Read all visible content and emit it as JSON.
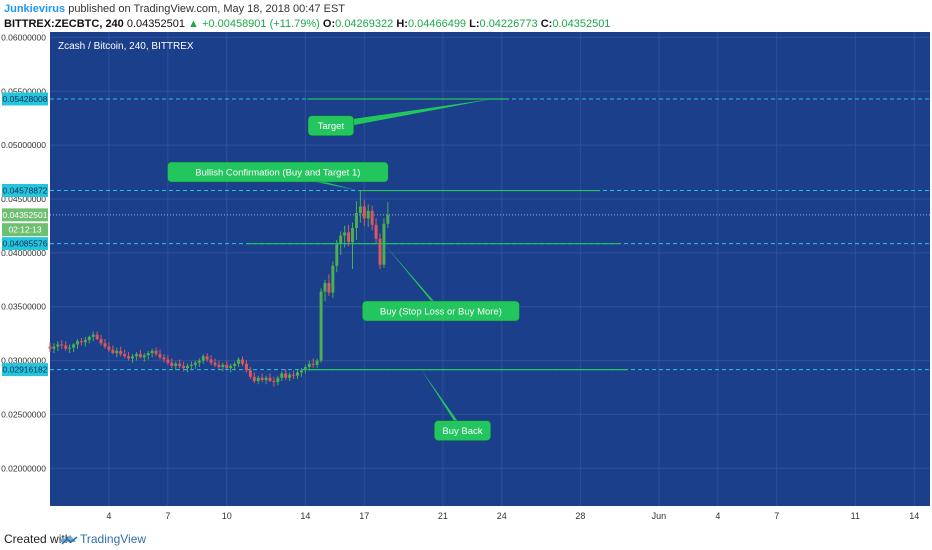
{
  "header": {
    "author": "Junkievirus",
    "published": " published on TradingView.com, May 18, 2018 00:47 EST",
    "symbol": "BITTREX:ZECBTC, 240",
    "last": "0.04352501",
    "change_arrow": "▲",
    "change": "+0.00458901 (+11.79%)",
    "o_label": "O:",
    "o_value": "0.04269322",
    "h_label": "H:",
    "h_value": "0.04466499",
    "l_label": "L:",
    "l_value": "0.04226773",
    "c_label": "C:",
    "c_value": "0.04352501"
  },
  "footer": {
    "created_with": "Created with",
    "brand": "TradingView"
  },
  "colors": {
    "background": "#1b3f8b",
    "bull": "#4caf50",
    "bear": "#e0575b",
    "level_line": "#26c6da",
    "annotation": "#22c55e",
    "axis_badge": "#26c6da",
    "price_badge": "#6fbf73"
  },
  "chart_data": {
    "type": "candlestick",
    "title": "Zcash / Bitcoin, 240, BITTREX",
    "ylim": [
      0.0165,
      0.0605
    ],
    "y_ticks": [
      "0.06000000",
      "0.05500000",
      "0.05000000",
      "0.04500000",
      "0.04000000",
      "0.03500000",
      "0.03000000",
      "0.02500000",
      "0.02000000"
    ],
    "y_tick_values": [
      0.06,
      0.055,
      0.05,
      0.045,
      0.04,
      0.035,
      0.03,
      0.025,
      0.02
    ],
    "x_ticks": [
      "4",
      "7",
      "10",
      "14",
      "17",
      "21",
      "24",
      "28",
      "Jun",
      "4",
      "7",
      "11",
      "14"
    ],
    "x_tick_days": [
      4,
      7,
      10,
      14,
      17,
      21,
      24,
      28,
      32,
      35,
      38,
      42,
      45
    ],
    "x_start_day": 1.0,
    "x_end_day": 45.8,
    "grid": true,
    "price_badges": [
      {
        "label": "0.05428008",
        "value": 0.05428008
      },
      {
        "label": "0.04578872",
        "value": 0.04578872
      },
      {
        "label": "0.04352501",
        "value": 0.04352501
      },
      {
        "label": "02:12:13",
        "value": 0.04215
      },
      {
        "label": "0.04085576",
        "value": 0.04085576
      },
      {
        "label": "0.02916182",
        "value": 0.02916182
      }
    ],
    "levels": [
      {
        "value": 0.05428008,
        "style": "dashed"
      },
      {
        "value": 0.04578872,
        "style": "dashed"
      },
      {
        "value": 0.04085576,
        "style": "dashed"
      },
      {
        "value": 0.02916182,
        "style": "dashed"
      },
      {
        "value": 0.04352501,
        "style": "dotted"
      }
    ],
    "annotations": [
      {
        "text": "Target",
        "anchor_day": 23.5,
        "anchor_price": 0.05428,
        "box_day": 15.3,
        "box_price": 0.0518
      },
      {
        "text": "Bullish Confirmation (Buy and Target 1)",
        "anchor_day": 16.7,
        "anchor_price": 0.04578,
        "box_day": 12.6,
        "box_price": 0.0475
      },
      {
        "text": "Buy (Stop Loss or Buy More)",
        "anchor_day": 18.0,
        "anchor_price": 0.04085,
        "box_day": 20.9,
        "box_price": 0.0346
      },
      {
        "text": "Buy Back",
        "anchor_day": 19.9,
        "anchor_price": 0.02916,
        "box_day": 22.0,
        "box_price": 0.0235
      }
    ],
    "annotation_lines": [
      {
        "start_day": 14.1,
        "end_day": 24.3,
        "price": 0.05428
      },
      {
        "start_day": 16.7,
        "end_day": 29.0,
        "price": 0.04578
      },
      {
        "start_day": 11.0,
        "end_day": 30.0,
        "price": 0.04085
      },
      {
        "start_day": 14.1,
        "end_day": 30.4,
        "price": 0.02916
      }
    ],
    "candles": [
      [
        1.0,
        0.0313,
        0.0317,
        0.0308,
        0.0311
      ],
      [
        1.2,
        0.0311,
        0.0316,
        0.0307,
        0.0313
      ],
      [
        1.4,
        0.0313,
        0.0318,
        0.0309,
        0.0315
      ],
      [
        1.6,
        0.0315,
        0.0319,
        0.0311,
        0.0314
      ],
      [
        1.8,
        0.0314,
        0.0318,
        0.0309,
        0.0311
      ],
      [
        2.0,
        0.0311,
        0.0315,
        0.0307,
        0.0312
      ],
      [
        2.2,
        0.0312,
        0.0316,
        0.0308,
        0.0315
      ],
      [
        2.4,
        0.0315,
        0.032,
        0.0311,
        0.0318
      ],
      [
        2.6,
        0.0318,
        0.0321,
        0.0314,
        0.0317
      ],
      [
        2.8,
        0.0317,
        0.0322,
        0.0313,
        0.0319
      ],
      [
        3.0,
        0.0319,
        0.0323,
        0.0316,
        0.0322
      ],
      [
        3.2,
        0.0322,
        0.0327,
        0.0318,
        0.0324
      ],
      [
        3.4,
        0.0324,
        0.0327,
        0.0319,
        0.032
      ],
      [
        3.6,
        0.032,
        0.0324,
        0.0314,
        0.0316
      ],
      [
        3.8,
        0.0316,
        0.032,
        0.0311,
        0.0313
      ],
      [
        4.0,
        0.0313,
        0.0317,
        0.0308,
        0.031
      ],
      [
        4.2,
        0.031,
        0.0314,
        0.0306,
        0.0307
      ],
      [
        4.4,
        0.0307,
        0.0312,
        0.0303,
        0.0309
      ],
      [
        4.6,
        0.0309,
        0.0313,
        0.0304,
        0.0306
      ],
      [
        4.8,
        0.0306,
        0.031,
        0.0302,
        0.0304
      ],
      [
        5.0,
        0.0304,
        0.0308,
        0.03,
        0.0302
      ],
      [
        5.2,
        0.0302,
        0.0306,
        0.0298,
        0.0304
      ],
      [
        5.4,
        0.0304,
        0.0308,
        0.03,
        0.0306
      ],
      [
        5.6,
        0.0306,
        0.031,
        0.0302,
        0.0303
      ],
      [
        5.8,
        0.0303,
        0.0307,
        0.0299,
        0.0305
      ],
      [
        6.0,
        0.0305,
        0.0309,
        0.0301,
        0.0307
      ],
      [
        6.2,
        0.0307,
        0.0311,
        0.0303,
        0.0309
      ],
      [
        6.4,
        0.0309,
        0.0312,
        0.0304,
        0.0306
      ],
      [
        6.6,
        0.0306,
        0.031,
        0.0301,
        0.0303
      ],
      [
        6.8,
        0.0303,
        0.0306,
        0.0298,
        0.0301
      ],
      [
        7.0,
        0.0301,
        0.0305,
        0.0296,
        0.0298
      ],
      [
        7.2,
        0.0298,
        0.0302,
        0.0293,
        0.0295
      ],
      [
        7.4,
        0.0295,
        0.0299,
        0.0291,
        0.0297
      ],
      [
        7.6,
        0.0297,
        0.0301,
        0.0293,
        0.0295
      ],
      [
        7.8,
        0.0295,
        0.0299,
        0.029,
        0.0293
      ],
      [
        8.0,
        0.0293,
        0.0297,
        0.0289,
        0.0295
      ],
      [
        8.2,
        0.0295,
        0.0299,
        0.0291,
        0.0296
      ],
      [
        8.4,
        0.0296,
        0.03,
        0.0292,
        0.0298
      ],
      [
        8.6,
        0.0298,
        0.0302,
        0.0294,
        0.03
      ],
      [
        8.8,
        0.03,
        0.0306,
        0.0297,
        0.0304
      ],
      [
        9.0,
        0.0304,
        0.0307,
        0.0299,
        0.0301
      ],
      [
        9.2,
        0.0301,
        0.0305,
        0.0296,
        0.0298
      ],
      [
        9.4,
        0.0298,
        0.0302,
        0.0294,
        0.0296
      ],
      [
        9.6,
        0.0296,
        0.03,
        0.0292,
        0.0294
      ],
      [
        9.8,
        0.0294,
        0.0298,
        0.029,
        0.0296
      ],
      [
        10.0,
        0.0296,
        0.03,
        0.0292,
        0.0293
      ],
      [
        10.2,
        0.0293,
        0.0297,
        0.0289,
        0.0295
      ],
      [
        10.4,
        0.0295,
        0.0299,
        0.0291,
        0.0297
      ],
      [
        10.6,
        0.0297,
        0.0303,
        0.0294,
        0.0301
      ],
      [
        10.8,
        0.0301,
        0.0304,
        0.0295,
        0.0297
      ],
      [
        11.0,
        0.0297,
        0.03,
        0.0289,
        0.0291
      ],
      [
        11.2,
        0.0291,
        0.0294,
        0.0283,
        0.0285
      ],
      [
        11.4,
        0.0285,
        0.0289,
        0.0279,
        0.0281
      ],
      [
        11.6,
        0.0281,
        0.0286,
        0.0278,
        0.0284
      ],
      [
        11.8,
        0.0284,
        0.0288,
        0.028,
        0.0282
      ],
      [
        12.0,
        0.0282,
        0.0286,
        0.0278,
        0.0284
      ],
      [
        12.2,
        0.0284,
        0.0288,
        0.028,
        0.0281
      ],
      [
        12.4,
        0.0281,
        0.0285,
        0.0276,
        0.028
      ],
      [
        12.6,
        0.028,
        0.0286,
        0.0277,
        0.0284
      ],
      [
        12.8,
        0.0284,
        0.029,
        0.0281,
        0.0288
      ],
      [
        13.0,
        0.0288,
        0.0292,
        0.0282,
        0.0284
      ],
      [
        13.2,
        0.0284,
        0.0289,
        0.0281,
        0.0287
      ],
      [
        13.4,
        0.0287,
        0.0291,
        0.0283,
        0.0286
      ],
      [
        13.6,
        0.0286,
        0.0291,
        0.0283,
        0.0289
      ],
      [
        13.8,
        0.0289,
        0.0293,
        0.0285,
        0.0291
      ],
      [
        14.0,
        0.0291,
        0.0296,
        0.0288,
        0.0294
      ],
      [
        14.2,
        0.0294,
        0.03,
        0.0291,
        0.0297
      ],
      [
        14.4,
        0.0297,
        0.0302,
        0.0293,
        0.0296
      ],
      [
        14.6,
        0.0296,
        0.0302,
        0.0293,
        0.03
      ],
      [
        14.8,
        0.03,
        0.0367,
        0.0298,
        0.0364
      ],
      [
        15.0,
        0.0364,
        0.0375,
        0.0355,
        0.0372
      ],
      [
        15.2,
        0.0372,
        0.038,
        0.036,
        0.0363
      ],
      [
        15.4,
        0.0363,
        0.0392,
        0.0358,
        0.0388
      ],
      [
        15.6,
        0.0388,
        0.0412,
        0.0382,
        0.0408
      ],
      [
        15.8,
        0.0408,
        0.042,
        0.0398,
        0.0416
      ],
      [
        16.0,
        0.0416,
        0.0425,
        0.0405,
        0.0419
      ],
      [
        16.2,
        0.0419,
        0.0426,
        0.0406,
        0.041
      ],
      [
        16.4,
        0.041,
        0.0428,
        0.0385,
        0.0423
      ],
      [
        16.6,
        0.0423,
        0.0448,
        0.0412,
        0.0437
      ],
      [
        16.8,
        0.0437,
        0.0458,
        0.0428,
        0.0443
      ],
      [
        17.0,
        0.0443,
        0.0449,
        0.0425,
        0.0432
      ],
      [
        17.2,
        0.0432,
        0.0445,
        0.0424,
        0.0439
      ],
      [
        17.4,
        0.0439,
        0.0444,
        0.0421,
        0.0426
      ],
      [
        17.6,
        0.0426,
        0.0432,
        0.0409,
        0.0413
      ],
      [
        17.8,
        0.0413,
        0.0418,
        0.0385,
        0.0389
      ],
      [
        18.0,
        0.0389,
        0.0432,
        0.0386,
        0.0427
      ],
      [
        18.2,
        0.0427,
        0.0447,
        0.0423,
        0.0435
      ]
    ]
  }
}
